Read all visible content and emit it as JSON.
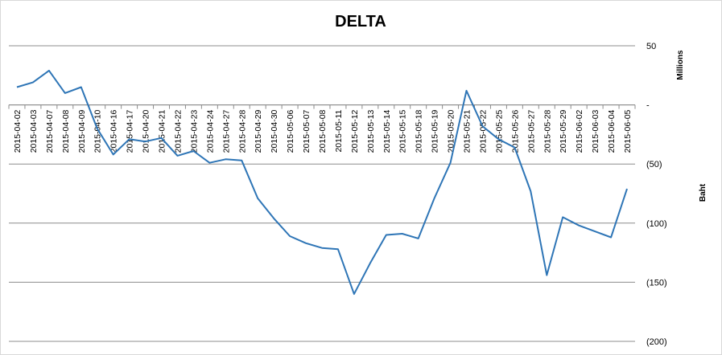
{
  "chart_data": {
    "type": "line",
    "title": "DELTA",
    "ylabel": "Baht",
    "y_units_label": "Millions",
    "ylim": [
      -200,
      50
    ],
    "y_ticks": [
      {
        "value": 50,
        "label": "50"
      },
      {
        "value": 0,
        "label": "-"
      },
      {
        "value": -50,
        "label": "(50)"
      },
      {
        "value": -100,
        "label": "(100)"
      },
      {
        "value": -150,
        "label": "(150)"
      },
      {
        "value": -200,
        "label": "(200)"
      }
    ],
    "grid": true,
    "x_axis_crosses_at": 0,
    "line_color": "#2e75b6",
    "categories": [
      "2015-04-02",
      "2015-04-03",
      "2015-04-07",
      "2015-04-08",
      "2015-04-09",
      "2015-04-10",
      "2015-04-16",
      "2015-04-17",
      "2015-04-20",
      "2015-04-21",
      "2015-04-22",
      "2015-04-23",
      "2015-04-24",
      "2015-04-27",
      "2015-04-28",
      "2015-04-29",
      "2015-04-30",
      "2015-05-06",
      "2015-05-07",
      "2015-05-08",
      "2015-05-11",
      "2015-05-12",
      "2015-05-13",
      "2015-05-14",
      "2015-05-15",
      "2015-05-18",
      "2015-05-19",
      "2015-05-20",
      "2015-05-21",
      "2015-05-22",
      "2015-05-25",
      "2015-05-26",
      "2015-05-27",
      "2015-05-28",
      "2015-05-29",
      "2015-06-02",
      "2015-06-03",
      "2015-06-04",
      "2015-06-05"
    ],
    "values": [
      15,
      19,
      29,
      10,
      15,
      -20,
      -42,
      -29,
      -31,
      -28,
      -43,
      -39,
      -49,
      -46,
      -47,
      -79,
      -96,
      -111,
      -117,
      -121,
      -122,
      -160,
      -134,
      -110,
      -109,
      -113,
      -79,
      -49,
      12,
      -18,
      -29,
      -36,
      -73,
      -144,
      -95,
      -102,
      -107,
      -112,
      -71
    ]
  }
}
